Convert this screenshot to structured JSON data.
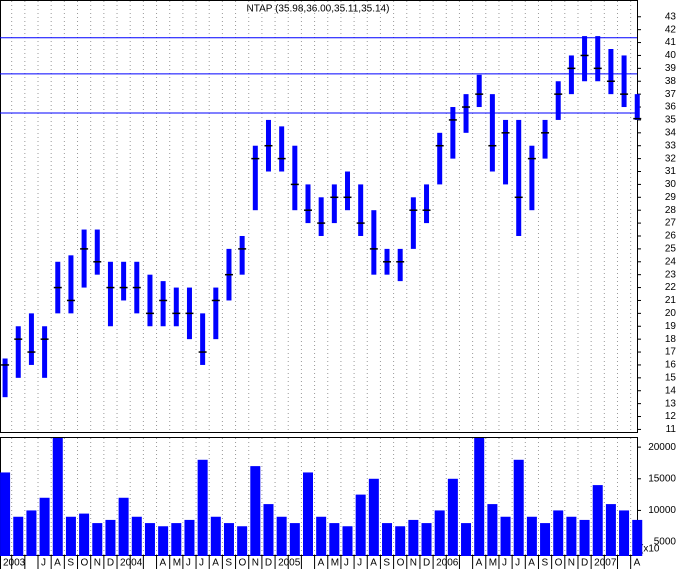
{
  "chart_data": {
    "type": "stock",
    "title": "NTAP (35.98,36.00,35.11,35.14)",
    "categories": [
      "2003",
      null,
      null,
      "J",
      "A",
      "S",
      "O",
      "N",
      "D",
      "2004",
      null,
      null,
      "A",
      "M",
      "J",
      "J",
      "A",
      "S",
      "O",
      "N",
      "D",
      "2005",
      null,
      null,
      "A",
      "M",
      "J",
      "J",
      "A",
      "S",
      "O",
      "N",
      "D",
      "2006",
      null,
      null,
      "A",
      "M",
      "J",
      "J",
      "A",
      "S",
      "O",
      "N",
      "D",
      "2007",
      null,
      null,
      "A"
    ],
    "series": [
      {
        "name": "High",
        "color": "#0000ff",
        "values": [
          16.5,
          19,
          20,
          19,
          24,
          24.5,
          26.5,
          26.5,
          24,
          24,
          24,
          23,
          22.5,
          22,
          22,
          20,
          22,
          25,
          26,
          33,
          35,
          34.5,
          33,
          30,
          29,
          30,
          31,
          30,
          28,
          25,
          25,
          29,
          30,
          34,
          36,
          37,
          38.5,
          37,
          35,
          35,
          33,
          35,
          38,
          40,
          41.5,
          41.5,
          40.5,
          40,
          37
        ]
      },
      {
        "name": "Low",
        "color": "#0000ff",
        "values": [
          13.5,
          15,
          16,
          15,
          20,
          20,
          22,
          23,
          19,
          21,
          20,
          19,
          19,
          19,
          18,
          16,
          18,
          21,
          23,
          28,
          31,
          31,
          28,
          27,
          26,
          27,
          28,
          26,
          23,
          23,
          22.5,
          25,
          27,
          30,
          32,
          34,
          36,
          31,
          30,
          26,
          28,
          32,
          35,
          37,
          38,
          38,
          37,
          36,
          35
        ]
      },
      {
        "name": "Close",
        "color": "#000000",
        "values": [
          16,
          18,
          17,
          18,
          22,
          21,
          25,
          24,
          22,
          22,
          22,
          20,
          21,
          20,
          20,
          17,
          21,
          23,
          25,
          32,
          33,
          32,
          30,
          28,
          27,
          29,
          29,
          27,
          25,
          24,
          24,
          28,
          28,
          33,
          35,
          36,
          37,
          33,
          34,
          29,
          32,
          34,
          37,
          39,
          40,
          39,
          38,
          37,
          35.1
        ]
      },
      {
        "name": "Volume",
        "color": "#0000ff",
        "axis": "y2",
        "values": [
          16000,
          9000,
          10000,
          12000,
          26000,
          9000,
          9500,
          8000,
          8500,
          12000,
          9000,
          8000,
          7500,
          8000,
          8500,
          18000,
          9000,
          8000,
          7500,
          17000,
          11000,
          9000,
          8000,
          16000,
          9000,
          8000,
          7500,
          12500,
          15000,
          8000,
          7500,
          8500,
          8000,
          10000,
          15000,
          8000,
          25000,
          11000,
          9000,
          18000,
          9000,
          8000,
          10000,
          9000,
          8500,
          14000,
          11000,
          10000,
          8500
        ]
      }
    ],
    "hlines": [
      41.37,
      38.57,
      35.54
    ],
    "hline_color": "#0000ff",
    "ylim": [
      10.8,
      44.3
    ],
    "yticks": [
      11,
      12,
      13,
      14,
      15,
      16,
      17,
      18,
      19,
      20,
      21,
      22,
      23,
      24,
      25,
      26,
      27,
      28,
      29,
      30,
      31,
      32,
      33,
      34,
      35,
      36,
      37,
      38,
      39,
      40,
      41,
      42,
      43
    ],
    "y2lim": [
      2800,
      21600
    ],
    "y2ticks": [
      5000,
      10000,
      15000,
      20000
    ],
    "volume_unit": "(x10",
    "grid": true
  }
}
